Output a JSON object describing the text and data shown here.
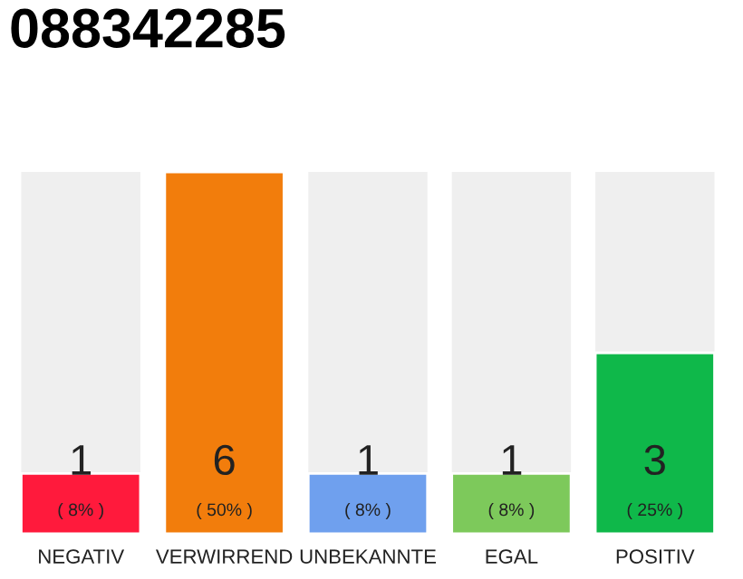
{
  "chart_data": {
    "type": "bar",
    "title": "088342285",
    "categories": [
      "NEGATIV",
      "VERWIRREND",
      "UNBEKANNTE",
      "EGAL",
      "POSITIV"
    ],
    "values": [
      1,
      6,
      1,
      1,
      3
    ],
    "colors": [
      "#ff1a3c",
      "#f27d0c",
      "#6fa0ee",
      "#7dc95b",
      "#0fb84a"
    ],
    "data_labels": true,
    "annotations": [
      "( 8% )",
      "( 50% )",
      "( 8% )",
      "( 8% )",
      "( 25% )"
    ]
  }
}
